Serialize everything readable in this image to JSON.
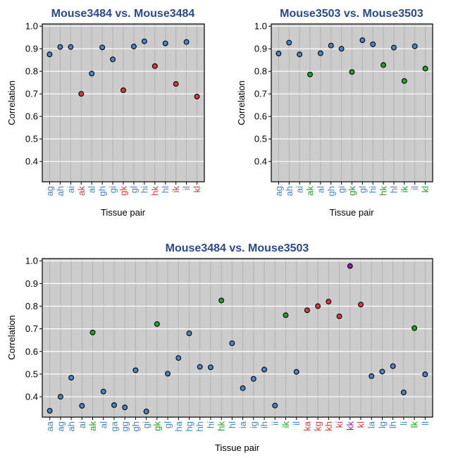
{
  "colors": {
    "panel_bg": "#cccccc",
    "grid_major": "#ffffff",
    "grid_minor": "#b2b2b2",
    "title": "#2a4a8a",
    "blue": "#4a86c4",
    "red": "#d63c3c",
    "green": "#1fa51f",
    "purple": "#8a1fb0"
  },
  "chart_data": [
    {
      "type": "scatter",
      "title": "Mouse3484 vs. Mouse3484",
      "xlabel": "Tissue pair",
      "ylabel": "Correlation",
      "ylim": [
        0.31,
        1.01
      ],
      "yticks": [
        0.4,
        0.5,
        0.6,
        0.7,
        0.8,
        0.9,
        1.0
      ],
      "grid": true,
      "categories": [
        "ag",
        "ah",
        "ai",
        "ak",
        "al",
        "gh",
        "gi",
        "gk",
        "gl",
        "hi",
        "hk",
        "hl",
        "ik",
        "il",
        "kl"
      ],
      "values": [
        0.875,
        0.908,
        0.908,
        0.7,
        0.79,
        0.906,
        0.853,
        0.716,
        0.91,
        0.933,
        0.823,
        0.924,
        0.744,
        0.93,
        0.688
      ],
      "point_colors": [
        "blue",
        "blue",
        "blue",
        "red",
        "blue",
        "blue",
        "blue",
        "red",
        "blue",
        "blue",
        "red",
        "blue",
        "red",
        "blue",
        "red"
      ]
    },
    {
      "type": "scatter",
      "title": "Mouse3503 vs. Mouse3503",
      "xlabel": "Tissue pair",
      "ylabel": "Correlation",
      "ylim": [
        0.31,
        1.01
      ],
      "yticks": [
        0.4,
        0.5,
        0.6,
        0.7,
        0.8,
        0.9,
        1.0
      ],
      "grid": true,
      "categories": [
        "ag",
        "ah",
        "ai",
        "ak",
        "al",
        "gh",
        "gi",
        "gk",
        "gl",
        "hi",
        "hk",
        "hl",
        "ik",
        "il",
        "kl"
      ],
      "values": [
        0.879,
        0.927,
        0.875,
        0.786,
        0.88,
        0.914,
        0.9,
        0.797,
        0.938,
        0.92,
        0.828,
        0.905,
        0.757,
        0.911,
        0.812
      ],
      "point_colors": [
        "blue",
        "blue",
        "blue",
        "green",
        "blue",
        "blue",
        "blue",
        "green",
        "blue",
        "blue",
        "green",
        "blue",
        "green",
        "blue",
        "green"
      ]
    },
    {
      "type": "scatter",
      "title": "Mouse3484 vs. Mouse3503",
      "xlabel": "Tissue pair",
      "ylabel": "Correlation",
      "ylim": [
        0.31,
        1.01
      ],
      "yticks": [
        0.4,
        0.5,
        0.6,
        0.7,
        0.8,
        0.9,
        1.0
      ],
      "grid": true,
      "categories": [
        "aa",
        "ag",
        "ah",
        "ai",
        "ak",
        "al",
        "ga",
        "gg",
        "gh",
        "gi",
        "gk",
        "gl",
        "ha",
        "hg",
        "hh",
        "hi",
        "hk",
        "hl",
        "ia",
        "ig",
        "ih",
        "ii",
        "ik",
        "il",
        "ka",
        "kg",
        "kh",
        "ki",
        "kk",
        "kl",
        "la",
        "lg",
        "lh",
        "li",
        "lk",
        "ll"
      ],
      "values": [
        0.338,
        0.4,
        0.484,
        0.36,
        0.684,
        0.423,
        0.363,
        0.353,
        0.517,
        0.335,
        0.721,
        0.502,
        0.571,
        0.68,
        0.532,
        0.53,
        0.825,
        0.636,
        0.438,
        0.479,
        0.52,
        0.361,
        0.76,
        0.51,
        0.782,
        0.8,
        0.82,
        0.755,
        0.977,
        0.807,
        0.491,
        0.511,
        0.535,
        0.419,
        0.703,
        0.499
      ],
      "point_colors": [
        "blue",
        "blue",
        "blue",
        "blue",
        "green",
        "blue",
        "blue",
        "blue",
        "blue",
        "blue",
        "green",
        "blue",
        "blue",
        "blue",
        "blue",
        "blue",
        "green",
        "blue",
        "blue",
        "blue",
        "blue",
        "blue",
        "green",
        "blue",
        "red",
        "red",
        "red",
        "red",
        "purple",
        "red",
        "blue",
        "blue",
        "blue",
        "blue",
        "green",
        "blue"
      ]
    }
  ]
}
